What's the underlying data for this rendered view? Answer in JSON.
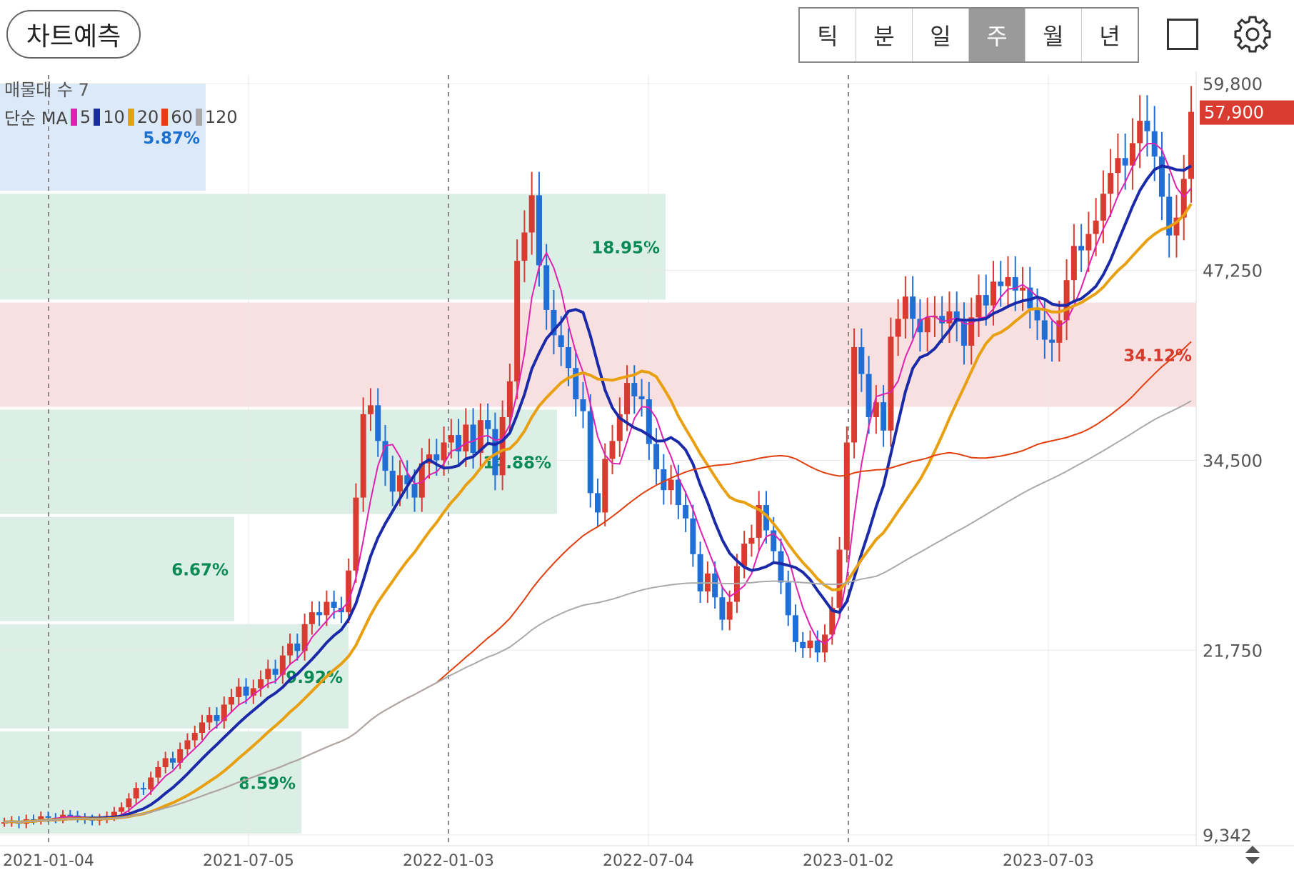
{
  "header": {
    "predict_button": "차트예측",
    "periods": [
      "틱",
      "분",
      "일",
      "주",
      "월",
      "년"
    ],
    "active_period": "주"
  },
  "overlay": {
    "volume_profile_label": "매물대 수 7",
    "ma_label": "단순 MA",
    "ma_periods": [
      "5",
      "10",
      "20",
      "60",
      "120"
    ],
    "ma_colors": [
      "#e020b0",
      "#1a2aa8",
      "#e8a010",
      "#e04010",
      "#aaaaaa"
    ]
  },
  "chart_data": {
    "type": "candlestick",
    "price_ticks": [
      "59,800",
      "47,250",
      "34,500",
      "21,750",
      "9,342"
    ],
    "current_price": "57,900",
    "date_ticks": [
      "2021-01-04",
      "2021-07-05",
      "2022-01-03",
      "2022-07-04",
      "2023-01-02",
      "2023-07-03"
    ],
    "ylim": [
      9342,
      59800
    ],
    "volume_profile": [
      {
        "low": 52500,
        "high": 59800,
        "percent": "5.87%",
        "color": "#dbe9f8",
        "label_color": "#1a6fd0"
      },
      {
        "low": 45200,
        "high": 52400,
        "percent": "18.95%",
        "color": "#dcefe6",
        "label_color": "#0a8a55"
      },
      {
        "low": 38000,
        "high": 45100,
        "percent": "34.12%",
        "color": "#f8e0e0",
        "label_color": "#d53a2a"
      },
      {
        "low": 30800,
        "high": 37900,
        "percent": "14.88%",
        "color": "#dcefe6",
        "label_color": "#0a8a55"
      },
      {
        "low": 23600,
        "high": 30700,
        "percent": "6.67%",
        "color": "#dcefe6",
        "label_color": "#0a8a55"
      },
      {
        "low": 16400,
        "high": 23500,
        "percent": "9.92%",
        "color": "#dcefe6",
        "label_color": "#0a8a55"
      },
      {
        "low": 9342,
        "high": 16300,
        "percent": "8.59%",
        "color": "#dcefe6",
        "label_color": "#0a8a55"
      }
    ],
    "up_color": "#d93b30",
    "down_color": "#1f6fd6",
    "closes_weekly": [
      10200,
      10300,
      10100,
      10400,
      10350,
      10600,
      10500,
      10450,
      10700,
      10650,
      10500,
      10400,
      10300,
      10450,
      10600,
      10900,
      11200,
      11800,
      12500,
      12400,
      13200,
      13900,
      14500,
      14200,
      15100,
      15700,
      16200,
      16900,
      17400,
      17000,
      18100,
      18600,
      19300,
      18700,
      19200,
      19800,
      20500,
      20100,
      21400,
      22200,
      21700,
      23500,
      24300,
      24100,
      25000,
      24600,
      24300,
      27100,
      32000,
      37600,
      38200,
      35800,
      33800,
      32400,
      33500,
      32900,
      32000,
      34300,
      34900,
      34500,
      35700,
      36200,
      35100,
      36900,
      35000,
      37200,
      36600,
      33500,
      37400,
      39800,
      47900,
      49800,
      52300,
      47600,
      44600,
      42900,
      42100,
      40700,
      38600,
      37800,
      32300,
      31000,
      34600,
      35800,
      37600,
      39700,
      38800,
      38600,
      35600,
      33900,
      32500,
      33200,
      31500,
      30600,
      28200,
      25700,
      26900,
      25300,
      23800,
      25000,
      27400,
      28900,
      29300,
      31500,
      29800,
      28400,
      26300,
      24100,
      22300,
      21900,
      22400,
      21600,
      22800,
      24600,
      28500,
      35700,
      42100,
      40300,
      37400,
      38400,
      36500,
      42800,
      44000,
      45500,
      44000,
      43100,
      44100,
      44200,
      43700,
      44500,
      43800,
      42200,
      44100,
      45600,
      44900,
      46500,
      46200,
      46800,
      45900,
      46100,
      44700,
      43900,
      42600,
      42400,
      43900,
      46600,
      48900,
      48600,
      49700,
      50600,
      52400,
      53800,
      54800,
      54300,
      55800,
      57300,
      56600,
      54900,
      52200,
      49600,
      50800,
      53400,
      57900
    ]
  }
}
